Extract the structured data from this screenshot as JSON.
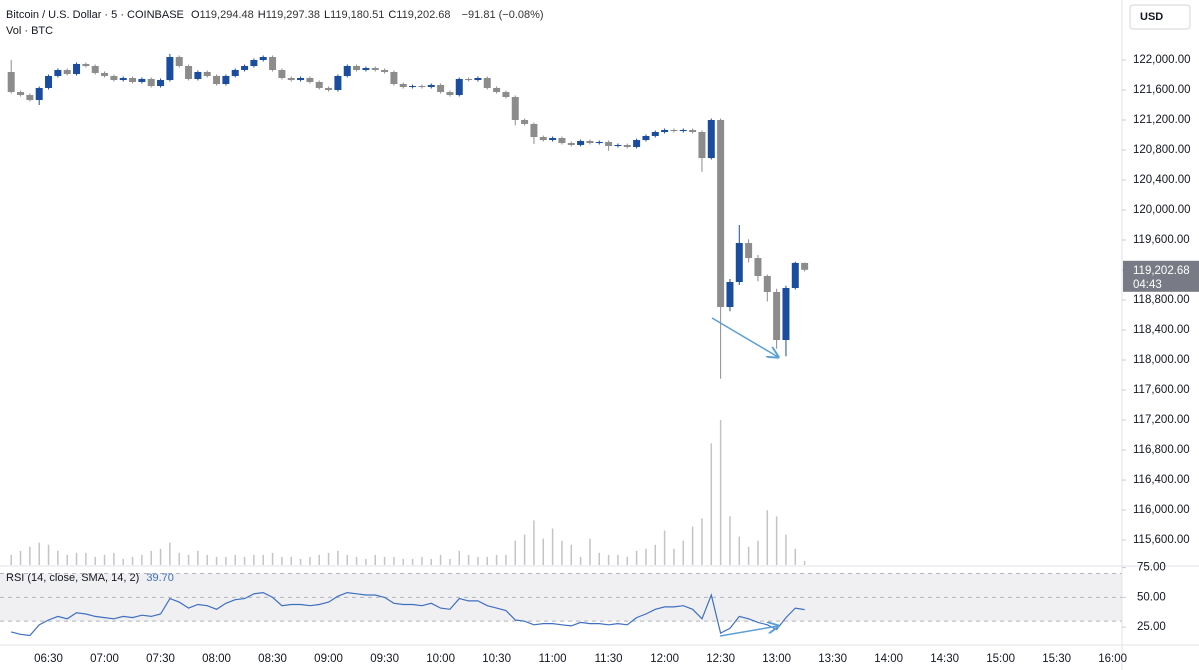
{
  "chart_data": [
    {
      "type": "candlestick",
      "title": "Bitcoin / U.S. Dollar · 5 · COINBASE",
      "ohlc_legend": [
        {
          "label": "O",
          "value": "119,294.48"
        },
        {
          "label": "H",
          "value": "119,297.38"
        },
        {
          "label": "L",
          "value": "119,180.51"
        },
        {
          "label": "C",
          "value": "119,202.68"
        }
      ],
      "change": "−91.81 (−0.08%)",
      "volume_label": "Vol · BTC",
      "currency": "USD",
      "up_color": "#1a4d9e",
      "down_color": "#8c8c8c",
      "volume_color": "#c4c4c4",
      "x": [
        "06:10",
        "06:15",
        "06:20",
        "06:25",
        "06:30",
        "06:35",
        "06:40",
        "06:45",
        "06:50",
        "06:55",
        "07:00",
        "07:05",
        "07:10",
        "07:15",
        "07:20",
        "07:25",
        "07:30",
        "07:35",
        "07:40",
        "07:45",
        "07:50",
        "07:55",
        "08:00",
        "08:05",
        "08:10",
        "08:15",
        "08:20",
        "08:25",
        "08:30",
        "08:35",
        "08:40",
        "08:45",
        "08:50",
        "08:55",
        "09:00",
        "09:05",
        "09:10",
        "09:15",
        "09:20",
        "09:25",
        "09:30",
        "09:35",
        "09:40",
        "09:45",
        "09:50",
        "09:55",
        "10:00",
        "10:05",
        "10:10",
        "10:15",
        "10:20",
        "10:25",
        "10:30",
        "10:35",
        "10:40",
        "10:45",
        "10:50",
        "10:55",
        "11:00",
        "11:05",
        "11:10",
        "11:15",
        "11:20",
        "11:25",
        "11:30",
        "11:35",
        "11:40",
        "11:45",
        "11:50",
        "11:55",
        "12:00",
        "12:05",
        "12:10",
        "12:15",
        "12:20",
        "12:25",
        "12:30",
        "12:35",
        "12:40",
        "12:45",
        "12:50",
        "12:55",
        "13:00",
        "13:05",
        "13:10",
        "13:15"
      ],
      "open": [
        121840,
        121573,
        121533,
        121467,
        121627,
        121787,
        121867,
        121813,
        121947,
        121920,
        121827,
        121787,
        121733,
        121760,
        121707,
        121747,
        121653,
        121733,
        122040,
        121920,
        121747,
        121840,
        121787,
        121680,
        121787,
        121867,
        121920,
        122000,
        122040,
        121867,
        121760,
        121733,
        121760,
        121707,
        121627,
        121600,
        121787,
        121920,
        121867,
        121893,
        121867,
        121840,
        121680,
        121640,
        121653,
        121640,
        121667,
        121573,
        121533,
        121747,
        121733,
        121760,
        121627,
        121573,
        121507,
        121200,
        121147,
        120973,
        120933,
        120960,
        120893,
        120867,
        120920,
        120893,
        120907,
        120853,
        120867,
        120840,
        120933,
        120987,
        121040,
        121067,
        121053,
        121067,
        121040,
        120693,
        121200,
        118707,
        119040,
        119560,
        119360,
        119120,
        118907,
        118267,
        118960,
        119294.48
      ],
      "high": [
        122000,
        121593,
        121553,
        121647,
        121807,
        121887,
        121887,
        121967,
        121967,
        121940,
        121847,
        121807,
        121780,
        121780,
        121767,
        121767,
        121753,
        122080,
        122060,
        121940,
        121860,
        121860,
        121807,
        121807,
        121887,
        121940,
        122020,
        122060,
        122060,
        121887,
        121780,
        121780,
        121780,
        121727,
        121647,
        121807,
        121940,
        121940,
        121913,
        121913,
        121887,
        121860,
        121700,
        121673,
        121673,
        121687,
        121687,
        121593,
        121767,
        121767,
        121780,
        121780,
        121647,
        121593,
        121527,
        121220,
        121167,
        120993,
        120980,
        120980,
        120913,
        120940,
        120940,
        120927,
        120927,
        120887,
        120887,
        120953,
        121007,
        121060,
        121087,
        121087,
        121087,
        121087,
        121060,
        121220,
        121220,
        119080,
        119800,
        119610,
        119400,
        119140,
        118950,
        118990,
        119310,
        119297.38
      ],
      "low": [
        121553,
        121513,
        121447,
        121400,
        121607,
        121767,
        121793,
        121793,
        121900,
        121807,
        121767,
        121713,
        121713,
        121687,
        121687,
        121633,
        121633,
        121713,
        121900,
        121727,
        121727,
        121767,
        121660,
        121660,
        121767,
        121847,
        121900,
        121980,
        121847,
        121740,
        121713,
        121713,
        121687,
        121607,
        121580,
        121580,
        121767,
        121847,
        121847,
        121847,
        121820,
        121660,
        121620,
        121620,
        121620,
        121620,
        121553,
        121513,
        121513,
        121713,
        121713,
        121607,
        121553,
        121487,
        121130,
        121127,
        120880,
        120913,
        120913,
        120873,
        120847,
        120847,
        120873,
        120873,
        120790,
        120833,
        120820,
        120820,
        120913,
        120967,
        121020,
        121033,
        121033,
        121020,
        120510,
        120673,
        117750,
        118650,
        119000,
        119300,
        119050,
        118780,
        118150,
        118050,
        118940,
        119180.51
      ],
      "close": [
        121573,
        121533,
        121467,
        121627,
        121787,
        121867,
        121813,
        121947,
        121920,
        121827,
        121787,
        121733,
        121760,
        121707,
        121747,
        121653,
        121733,
        122040,
        121920,
        121747,
        121840,
        121787,
        121680,
        121787,
        121867,
        121920,
        122000,
        122040,
        121867,
        121760,
        121733,
        121760,
        121707,
        121627,
        121600,
        121787,
        121920,
        121867,
        121893,
        121867,
        121840,
        121680,
        121640,
        121653,
        121640,
        121667,
        121573,
        121533,
        121747,
        121733,
        121760,
        121627,
        121573,
        121507,
        121200,
        121147,
        120973,
        120933,
        120960,
        120893,
        120867,
        120920,
        120893,
        120907,
        120853,
        120867,
        120840,
        120933,
        120987,
        121040,
        121067,
        121053,
        121067,
        121040,
        120693,
        121200,
        118707,
        119040,
        119560,
        119360,
        119120,
        118907,
        118267,
        118960,
        119294.48,
        119202.68
      ],
      "volume": [
        20,
        28,
        36,
        44,
        40,
        28,
        20,
        24,
        24,
        16,
        20,
        24,
        12,
        16,
        20,
        28,
        32,
        44,
        24,
        20,
        28,
        20,
        16,
        16,
        20,
        16,
        20,
        20,
        24,
        16,
        16,
        12,
        16,
        20,
        24,
        28,
        20,
        16,
        12,
        20,
        16,
        16,
        12,
        12,
        16,
        12,
        20,
        12,
        28,
        20,
        16,
        16,
        20,
        20,
        48,
        60,
        88,
        52,
        72,
        48,
        40,
        16,
        52,
        24,
        20,
        20,
        16,
        28,
        32,
        40,
        68,
        32,
        48,
        76,
        92,
        240,
        286,
        96,
        56,
        36,
        48,
        108,
        96,
        60,
        32,
        8
      ],
      "xlim": [
        "06:04",
        "16:05"
      ],
      "ylim": [
        115267,
        122800
      ],
      "yticks": [
        {
          "value": 115600,
          "label": "115,600.00"
        },
        {
          "value": 116000,
          "label": "116,000.00"
        },
        {
          "value": 116400,
          "label": "116,400.00"
        },
        {
          "value": 116800,
          "label": "116,800.00"
        },
        {
          "value": 117200,
          "label": "117,200.00"
        },
        {
          "value": 117600,
          "label": "117,600.00"
        },
        {
          "value": 118000,
          "label": "118,000.00"
        },
        {
          "value": 118400,
          "label": "118,400.00"
        },
        {
          "value": 118800,
          "label": "118,800.00"
        },
        {
          "value": 119200,
          "label": "119,200.00"
        },
        {
          "value": 119600,
          "label": "119,600.00"
        },
        {
          "value": 120000,
          "label": "120,000.00"
        },
        {
          "value": 120400,
          "label": "120,400.00"
        },
        {
          "value": 120800,
          "label": "120,800.00"
        },
        {
          "value": 121200,
          "label": "121,200.00"
        },
        {
          "value": 121600,
          "label": "121,600.00"
        },
        {
          "value": 122000,
          "label": "122,000.00"
        }
      ],
      "price_tag": {
        "value": 119202.68,
        "label": "119,202.68",
        "countdown": "04:43"
      },
      "grid": false
    },
    {
      "type": "line",
      "title": "RSI (14, close, SMA, 14, 2)",
      "value_label": "39.70",
      "color": "#3f6fc0",
      "x": [
        "06:10",
        "06:15",
        "06:20",
        "06:25",
        "06:30",
        "06:35",
        "06:40",
        "06:45",
        "06:50",
        "06:55",
        "07:00",
        "07:05",
        "07:10",
        "07:15",
        "07:20",
        "07:25",
        "07:30",
        "07:35",
        "07:40",
        "07:45",
        "07:50",
        "07:55",
        "08:00",
        "08:05",
        "08:10",
        "08:15",
        "08:20",
        "08:25",
        "08:30",
        "08:35",
        "08:40",
        "08:45",
        "08:50",
        "08:55",
        "09:00",
        "09:05",
        "09:10",
        "09:15",
        "09:20",
        "09:25",
        "09:30",
        "09:35",
        "09:40",
        "09:45",
        "09:50",
        "09:55",
        "10:00",
        "10:05",
        "10:10",
        "10:15",
        "10:20",
        "10:25",
        "10:30",
        "10:35",
        "10:40",
        "10:45",
        "10:50",
        "10:55",
        "11:00",
        "11:05",
        "11:10",
        "11:15",
        "11:20",
        "11:25",
        "11:30",
        "11:35",
        "11:40",
        "11:45",
        "11:50",
        "11:55",
        "12:00",
        "12:05",
        "12:10",
        "12:15",
        "12:20",
        "12:25",
        "12:30",
        "12:35",
        "12:40",
        "12:45",
        "12:50",
        "12:55",
        "13:00",
        "13:05",
        "13:10",
        "13:15"
      ],
      "values": [
        21,
        19,
        18,
        27,
        31,
        34,
        32,
        37,
        36,
        34,
        33,
        32,
        34,
        33,
        35,
        34,
        36,
        49,
        46,
        41,
        44,
        43,
        40,
        45,
        48,
        49,
        53,
        54,
        50,
        43,
        44,
        44,
        43,
        44,
        46,
        51,
        54,
        53,
        52,
        52,
        50,
        45,
        44,
        44,
        43,
        45,
        41,
        40,
        49,
        47,
        47,
        43,
        41,
        39,
        31,
        30,
        27,
        28,
        28,
        27,
        26,
        29,
        28,
        28,
        27,
        28,
        27,
        33,
        36,
        40,
        42,
        42,
        43,
        40,
        32,
        52,
        20,
        24,
        34,
        32,
        29,
        27,
        23,
        33,
        41,
        39.7
      ],
      "xlim": [
        "06:04",
        "16:05"
      ],
      "xticks": [
        "06:30",
        "07:00",
        "07:30",
        "08:00",
        "08:30",
        "09:00",
        "09:30",
        "10:00",
        "10:30",
        "11:00",
        "11:30",
        "12:00",
        "12:30",
        "13:00",
        "13:30",
        "14:00",
        "14:30",
        "15:00",
        "15:30",
        "16:00"
      ],
      "ylim": [
        10,
        75.5
      ],
      "yticks": [
        {
          "value": 25,
          "label": "25.00"
        },
        {
          "value": 50,
          "label": "50.00"
        },
        {
          "value": 75,
          "label": "75.00"
        }
      ],
      "band": [
        30,
        70
      ],
      "levels": [
        30,
        50,
        70
      ]
    }
  ]
}
